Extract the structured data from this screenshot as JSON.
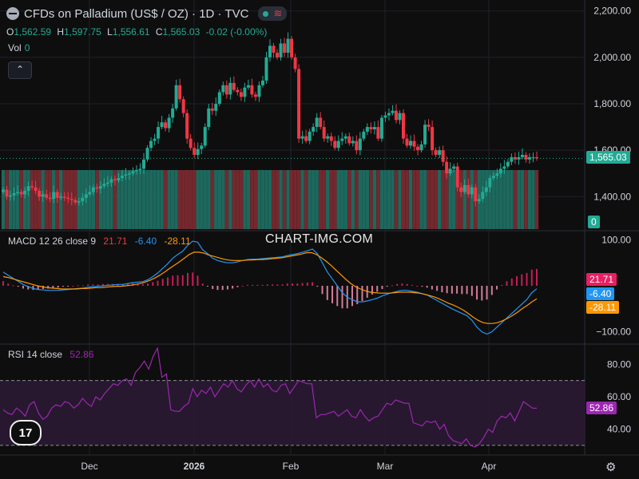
{
  "header": {
    "title": "CFDs on Palladium (US$ / OZ) · 1D · TVC",
    "ohlc": {
      "o_label": "O",
      "o": "1,562.59",
      "h_label": "H",
      "h": "1,597.75",
      "l_label": "L",
      "l": "1,556.61",
      "c_label": "C",
      "c": "1,565.03",
      "change": "-0.02 (-0.00%)"
    },
    "vol_label": "Vol",
    "vol_value": "0"
  },
  "watermark": "CHART-IMG.COM",
  "colors": {
    "up": "#22ab94",
    "down": "#f23645",
    "macd": "#2196f3",
    "signal": "#ff9800",
    "rsi": "#9c27b0",
    "grid": "#1e2129",
    "bg": "#0e0e0e"
  },
  "macd_label": {
    "text": "MACD 12 26 close 9",
    "hist": "21.71",
    "macd": "-6.40",
    "signal": "-28.11"
  },
  "rsi_label": {
    "text": "RSI 14 close",
    "value": "52.86"
  },
  "price_tag": "1,565.03",
  "vol_tag": "0",
  "icons": [
    "collapse-icon",
    "tradingview-logo",
    "settings-gear-icon"
  ],
  "chart_data": [
    {
      "type": "candlestick",
      "title": "CFDs on Palladium (US$ / OZ) · 1D · TVC",
      "x_ticks": [
        "Dec",
        "2026",
        "Feb",
        "Mar",
        "Apr"
      ],
      "y_ticks": [
        "2,200.00",
        "2,000.00",
        "1,800.00",
        "1,600.00",
        "1,400.00"
      ],
      "ylim": [
        1260,
        2230
      ],
      "close": [
        1430,
        1400,
        1405,
        1415,
        1420,
        1410,
        1425,
        1445,
        1440,
        1425,
        1400,
        1410,
        1395,
        1390,
        1420,
        1395,
        1400,
        1395,
        1390,
        1385,
        1375,
        1380,
        1395,
        1410,
        1420,
        1440,
        1435,
        1445,
        1455,
        1460,
        1475,
        1470,
        1480,
        1490,
        1495,
        1500,
        1510,
        1515,
        1520,
        1560,
        1610,
        1640,
        1650,
        1700,
        1720,
        1695,
        1740,
        1780,
        1880,
        1820,
        1760,
        1650,
        1610,
        1580,
        1605,
        1620,
        1700,
        1780,
        1770,
        1800,
        1850,
        1880,
        1840,
        1890,
        1860,
        1850,
        1830,
        1870,
        1880,
        1840,
        1830,
        1880,
        1900,
        2000,
        2050,
        2020,
        2000,
        2060,
        2020,
        2080,
        2000,
        1950,
        1650,
        1660,
        1640,
        1680,
        1700,
        1740,
        1700,
        1650,
        1660,
        1640,
        1610,
        1640,
        1650,
        1660,
        1630,
        1640,
        1600,
        1650,
        1680,
        1700,
        1690,
        1700,
        1650,
        1740,
        1750,
        1760,
        1770,
        1730,
        1760,
        1650,
        1620,
        1640,
        1615,
        1600,
        1625,
        1710,
        1700,
        1600,
        1580,
        1600,
        1550,
        1500,
        1520,
        1530,
        1440,
        1420,
        1450,
        1410,
        1440,
        1380,
        1390,
        1420,
        1440,
        1480,
        1490,
        1500,
        1520,
        1530,
        1550,
        1570,
        1560,
        1570,
        1580,
        1560,
        1570,
        1570,
        1565.03
      ],
      "volume": "0"
    },
    {
      "type": "line",
      "title": "MACD 12 26 close 9",
      "y_ticks": [
        "100.00",
        "−100.00"
      ],
      "ylim": [
        -125,
        118
      ],
      "series": [
        {
          "name": "MACD",
          "values": [
            30,
            23,
            16,
            10,
            3,
            -2,
            -6,
            -8,
            -9,
            -10,
            -10,
            -10,
            -9,
            -8,
            -7,
            -6,
            -5,
            -3,
            -2,
            -1,
            0,
            1,
            2,
            3,
            3,
            5,
            7,
            8,
            9,
            13,
            20,
            28,
            38,
            48,
            60,
            68,
            75,
            88,
            97,
            95,
            78,
            70,
            60,
            55,
            52,
            50,
            50,
            52,
            55,
            57,
            58,
            58,
            59,
            60,
            61,
            62,
            63,
            66,
            68,
            70,
            73,
            76,
            80,
            70,
            50,
            30,
            15,
            0,
            -15,
            -25,
            -30,
            -35,
            -35,
            -33,
            -30,
            -27,
            -22,
            -18,
            -15,
            -12,
            -10,
            -10,
            -12,
            -14,
            -17,
            -20,
            -26,
            -32,
            -38,
            -44,
            -50,
            -55,
            -60,
            -65,
            -75,
            -90,
            -100,
            -105,
            -100,
            -90,
            -80,
            -70,
            -60,
            -50,
            -40,
            -30,
            -15,
            -6.4
          ]
        },
        {
          "name": "Signal",
          "values": [
            20,
            18,
            15,
            12,
            9,
            6,
            3,
            0,
            -2,
            -4,
            -5,
            -6,
            -7,
            -7,
            -7,
            -7,
            -6,
            -6,
            -5,
            -4,
            -4,
            -3,
            -2,
            -1,
            -1,
            0,
            1,
            3,
            5,
            8,
            12,
            17,
            23,
            30,
            38,
            45,
            52,
            60,
            68,
            73,
            73,
            71,
            67,
            64,
            61,
            58,
            56,
            55,
            55,
            55,
            56,
            56,
            57,
            57,
            58,
            59,
            60,
            61,
            63,
            65,
            67,
            69,
            72,
            72,
            68,
            61,
            53,
            44,
            34,
            24,
            14,
            5,
            -2,
            -7,
            -11,
            -14,
            -15,
            -16,
            -16,
            -16,
            -15,
            -14,
            -14,
            -14,
            -15,
            -16,
            -18,
            -21,
            -24,
            -28,
            -33,
            -38,
            -42,
            -47,
            -53,
            -60,
            -68,
            -75,
            -80,
            -82,
            -82,
            -80,
            -76,
            -71,
            -65,
            -58,
            -50,
            -43,
            -35,
            -28.11
          ]
        }
      ],
      "histogram_last": 21.71
    },
    {
      "type": "line",
      "title": "RSI 14 close",
      "y_ticks": [
        "80.00",
        "60.00",
        "40.00"
      ],
      "ylim": [
        25,
        92
      ],
      "bands": [
        30,
        70
      ],
      "series": [
        {
          "name": "RSI",
          "values": [
            52,
            50,
            49,
            53,
            51,
            48,
            55,
            57,
            50,
            46,
            48,
            53,
            55,
            54,
            57,
            56,
            53,
            55,
            59,
            56,
            54,
            60,
            58,
            62,
            65,
            68,
            67,
            70,
            71,
            67,
            75,
            78,
            82,
            77,
            85,
            90,
            72,
            74,
            52,
            51,
            51,
            54,
            56,
            65,
            60,
            64,
            62,
            66,
            60,
            64,
            68,
            66,
            70,
            65,
            63,
            67,
            70,
            66,
            71,
            66,
            68,
            64,
            63,
            67,
            68,
            62,
            66,
            70,
            69,
            68,
            68,
            47,
            49,
            49,
            50,
            51,
            48,
            50,
            52,
            48,
            47,
            52,
            48,
            45,
            47,
            48,
            52,
            56,
            55,
            58,
            57,
            56,
            56,
            44,
            43,
            42,
            45,
            44,
            45,
            40,
            43,
            36,
            33,
            32,
            31,
            34,
            30,
            29,
            31,
            35,
            40,
            38,
            45,
            48,
            47,
            50,
            45,
            51,
            57,
            55,
            53,
            52.86
          ]
        }
      ]
    }
  ]
}
